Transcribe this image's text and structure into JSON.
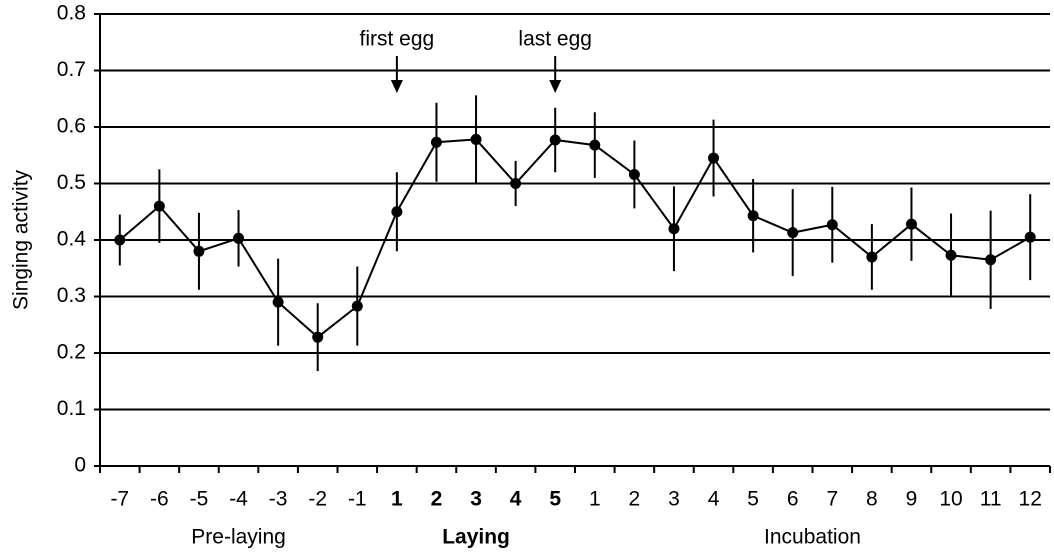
{
  "chart_data": {
    "type": "line",
    "y_label": "Singing activity",
    "categories": [
      "-7",
      "-6",
      "-5",
      "-4",
      "-3",
      "-2",
      "-1",
      "1",
      "2",
      "3",
      "4",
      "5",
      "1",
      "2",
      "3",
      "4",
      "5",
      "6",
      "7",
      "8",
      "9",
      "10",
      "11",
      "12"
    ],
    "groups": [
      {
        "name": "Pre-laying",
        "count": 7,
        "bold": false
      },
      {
        "name": "Laying",
        "count": 5,
        "bold": true
      },
      {
        "name": "Incubation",
        "count": 12,
        "bold": false
      }
    ],
    "series": [
      {
        "name": "Singing activity",
        "color": "#000000",
        "values": [
          0.4,
          0.46,
          0.38,
          0.403,
          0.29,
          0.228,
          0.283,
          0.45,
          0.573,
          0.578,
          0.5,
          0.577,
          0.568,
          0.516,
          0.42,
          0.545,
          0.443,
          0.413,
          0.427,
          0.37,
          0.428,
          0.373,
          0.365,
          0.405
        ],
        "errors": [
          0.045,
          0.065,
          0.068,
          0.05,
          0.077,
          0.06,
          0.07,
          0.07,
          0.07,
          0.078,
          0.04,
          0.057,
          0.058,
          0.06,
          0.075,
          0.068,
          0.065,
          0.077,
          0.067,
          0.058,
          0.065,
          0.074,
          0.087,
          0.076
        ]
      }
    ],
    "annotations": [
      {
        "text": "first egg",
        "at": 7
      },
      {
        "text": "last egg",
        "at": 11
      }
    ],
    "ylim": [
      0,
      0.8
    ],
    "yticks": [
      0,
      0.1,
      0.2,
      0.3,
      0.4,
      0.5,
      0.6,
      0.7,
      0.8
    ],
    "grid": true
  }
}
